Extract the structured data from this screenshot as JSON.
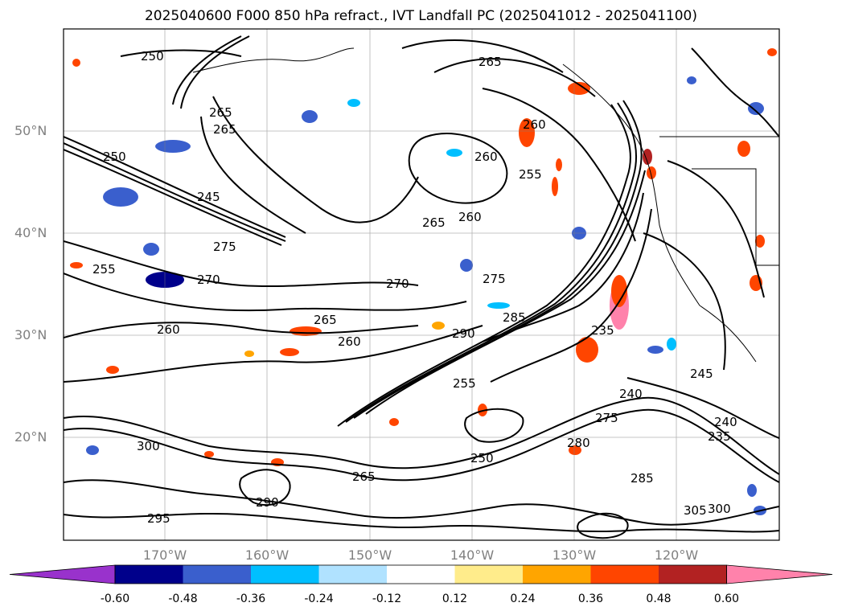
{
  "title": "2025040600 F000 850 hPa refract., IVT Landfall PC (2025041012 - 2025041100)",
  "lat_labels": [
    "50°N",
    "40°N",
    "30°N",
    "20°N"
  ],
  "lon_labels": [
    "170°W",
    "160°W",
    "150°W",
    "140°W",
    "130°W",
    "120°W"
  ],
  "contour_labels": [
    "250",
    "265",
    "265",
    "250",
    "245",
    "260",
    "275",
    "270",
    "255",
    "260",
    "265",
    "260",
    "270",
    "275",
    "285",
    "290",
    "265",
    "255",
    "260",
    "265",
    "260",
    "255",
    "235",
    "240",
    "245",
    "240",
    "235",
    "275",
    "280",
    "285",
    "290",
    "295",
    "300",
    "250",
    "265",
    "305",
    "300"
  ],
  "colorbar": {
    "ticks": [
      "-0.60",
      "-0.48",
      "-0.36",
      "-0.24",
      "-0.12",
      "0.12",
      "0.24",
      "0.36",
      "0.48",
      "0.60"
    ],
    "colors": [
      "#9932cc",
      "#00008b",
      "#3a5fcd",
      "#00bfff",
      "#b0e2ff",
      "#ffffff",
      "#ffec8b",
      "#ffa500",
      "#ff4500",
      "#b22222",
      "#ff82ab"
    ],
    "extend": "both"
  },
  "grid": true,
  "colors": {
    "contour": "#000000",
    "coast": "#000000",
    "grid": "#808080",
    "label": "#808080"
  }
}
